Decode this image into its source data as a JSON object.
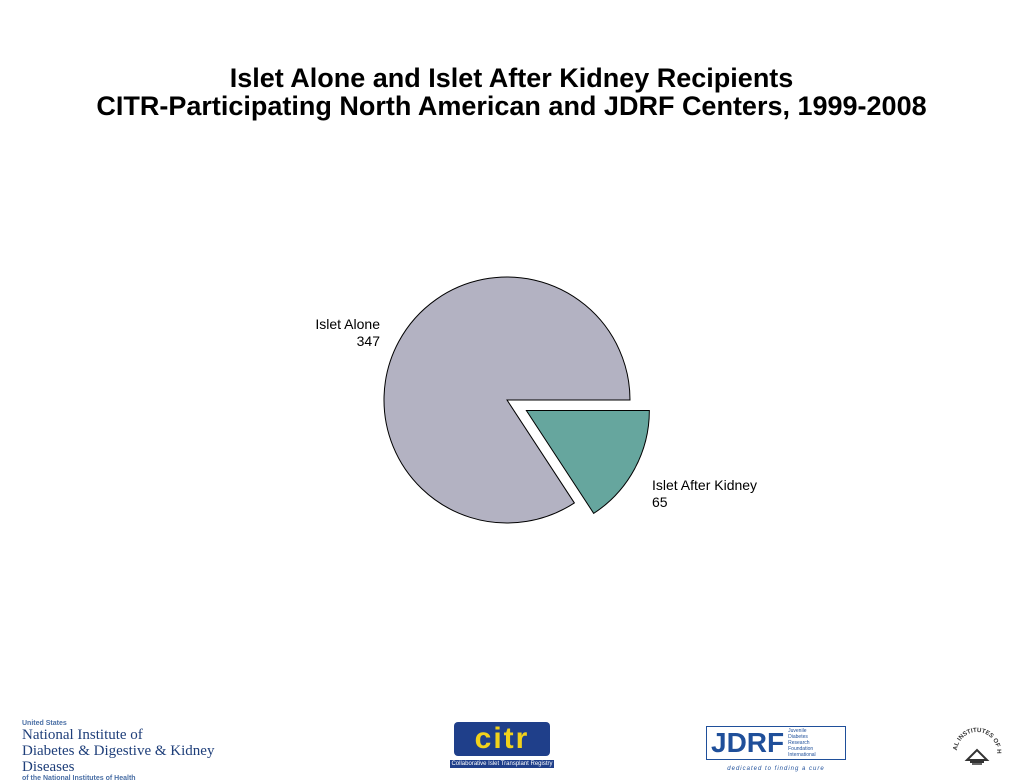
{
  "title": {
    "line1": "Islet Alone and Islet After Kidney Recipients",
    "line2": "CITR-Participating North American and JDRF Centers, 1999-2008"
  },
  "chart_data": {
    "type": "pie",
    "title": "Islet Alone and Islet After Kidney Recipients CITR-Participating North American and JDRF Centers, 1999-2008",
    "slices": [
      {
        "name": "Islet Alone",
        "value": 347,
        "color": "#b3b2c2",
        "exploded": false
      },
      {
        "name": "Islet After Kidney",
        "value": 65,
        "color": "#66a69e",
        "exploded": true
      }
    ],
    "legend": "none"
  },
  "logos": {
    "niddk": {
      "line1": "United States",
      "line2": "National Institute of",
      "line3": "Diabetes & Digestive & Kidney Diseases",
      "line4": "of the National Institutes of Health"
    },
    "citr": {
      "word": "citr",
      "sub": "Collaborative Islet Transplant Registry"
    },
    "jdrf": {
      "word": "JDRF",
      "side": [
        "Juvenile",
        "Diabetes",
        "Research",
        "Foundation",
        "International"
      ],
      "tagline": "dedicated to finding a cure"
    },
    "nih": {
      "text": "NATIONAL INSTITUTES OF HEALTH"
    }
  }
}
